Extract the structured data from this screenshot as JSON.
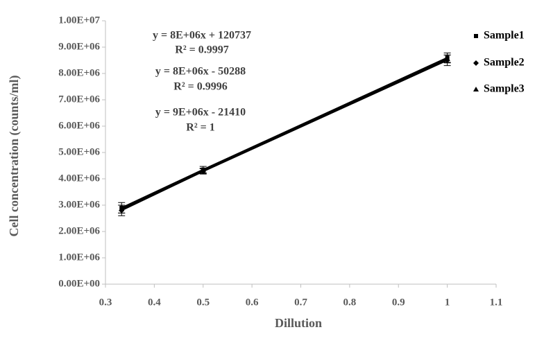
{
  "chart_data": {
    "type": "scatter",
    "xlabel": "Dillution",
    "ylabel": "Cell concentration  (counts/ml)",
    "xlim": [
      0.3,
      1.1
    ],
    "xticks": [
      0.3,
      0.4,
      0.5,
      0.6,
      0.7,
      0.8,
      0.9,
      1,
      1.1
    ],
    "ylim": [
      0,
      10000000
    ],
    "yticks": [
      {
        "value": 0,
        "label": "0.00E+00"
      },
      {
        "value": 1000000,
        "label": "1.00E+06"
      },
      {
        "value": 2000000,
        "label": "2.00E+06"
      },
      {
        "value": 3000000,
        "label": "3.00E+06"
      },
      {
        "value": 4000000,
        "label": "4.00E+06"
      },
      {
        "value": 5000000,
        "label": "5.00E+06"
      },
      {
        "value": 6000000,
        "label": "6.00E+06"
      },
      {
        "value": 7000000,
        "label": "7.00E+06"
      },
      {
        "value": 8000000,
        "label": "8.00E+06"
      },
      {
        "value": 9000000,
        "label": "9.00E+06"
      },
      {
        "value": 10000000,
        "label": "1.00E+07"
      }
    ],
    "grid": false,
    "legend": "right",
    "x": [
      0.333,
      0.5,
      1
    ],
    "series": [
      {
        "name": "Sample1",
        "color": "#000000",
        "marker": "square",
        "values": [
          2900000,
          4350000,
          8600000
        ],
        "errors": [
          200000,
          120000,
          180000
        ]
      },
      {
        "name": "Sample2",
        "color": "#000000",
        "marker": "diamond",
        "values": [
          2800000,
          4280000,
          8500000
        ],
        "errors": [
          200000,
          100000,
          200000
        ]
      },
      {
        "name": "Sample3",
        "color": "#000000",
        "marker": "triangle",
        "values": [
          2850000,
          4300000,
          8550000
        ],
        "errors": [
          150000,
          100000,
          150000
        ]
      }
    ],
    "annotations": [
      "y = 8E+06x + 120737",
      "R² = 0.9997",
      "y = 8E+06x - 50288",
      "R² = 0.9996",
      "y = 9E+06x - 21410",
      "R² = 1"
    ]
  }
}
